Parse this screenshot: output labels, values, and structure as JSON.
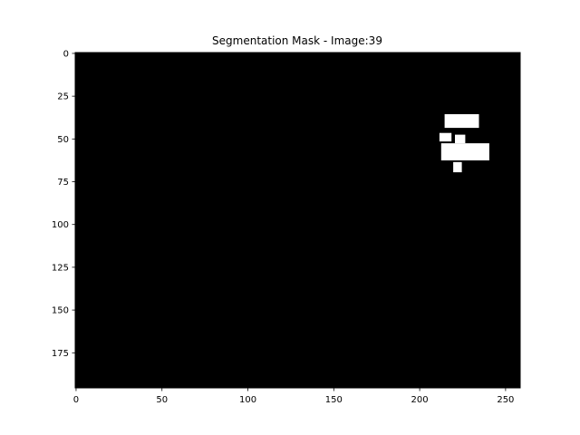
{
  "chart_data": {
    "type": "heatmap",
    "title": "Segmentation Mask - Image:39",
    "xlabel": "",
    "ylabel": "",
    "image_width": 259,
    "image_height": 196,
    "xlim": [
      -0.5,
      258.5
    ],
    "ylim": [
      195.5,
      -0.5
    ],
    "x_ticks": [
      0,
      50,
      100,
      150,
      200,
      250
    ],
    "y_ticks": [
      0,
      25,
      50,
      75,
      100,
      125,
      150,
      175
    ],
    "grid": false,
    "legend": "none",
    "colormap": {
      "background": "#000000",
      "foreground": "#ffffff"
    },
    "mask_regions": [
      {
        "name": "upper-blob",
        "x": [
          215,
          234
        ],
        "y": [
          36,
          43
        ]
      },
      {
        "name": "middle-fragment-left",
        "x": [
          212,
          218
        ],
        "y": [
          47,
          51
        ]
      },
      {
        "name": "middle-fragment-right",
        "x": [
          221,
          226
        ],
        "y": [
          48,
          52
        ]
      },
      {
        "name": "lower-band",
        "x": [
          213,
          240
        ],
        "y": [
          53,
          62
        ]
      },
      {
        "name": "speckle-below",
        "x": [
          220,
          224
        ],
        "y": [
          64,
          69
        ]
      }
    ]
  }
}
